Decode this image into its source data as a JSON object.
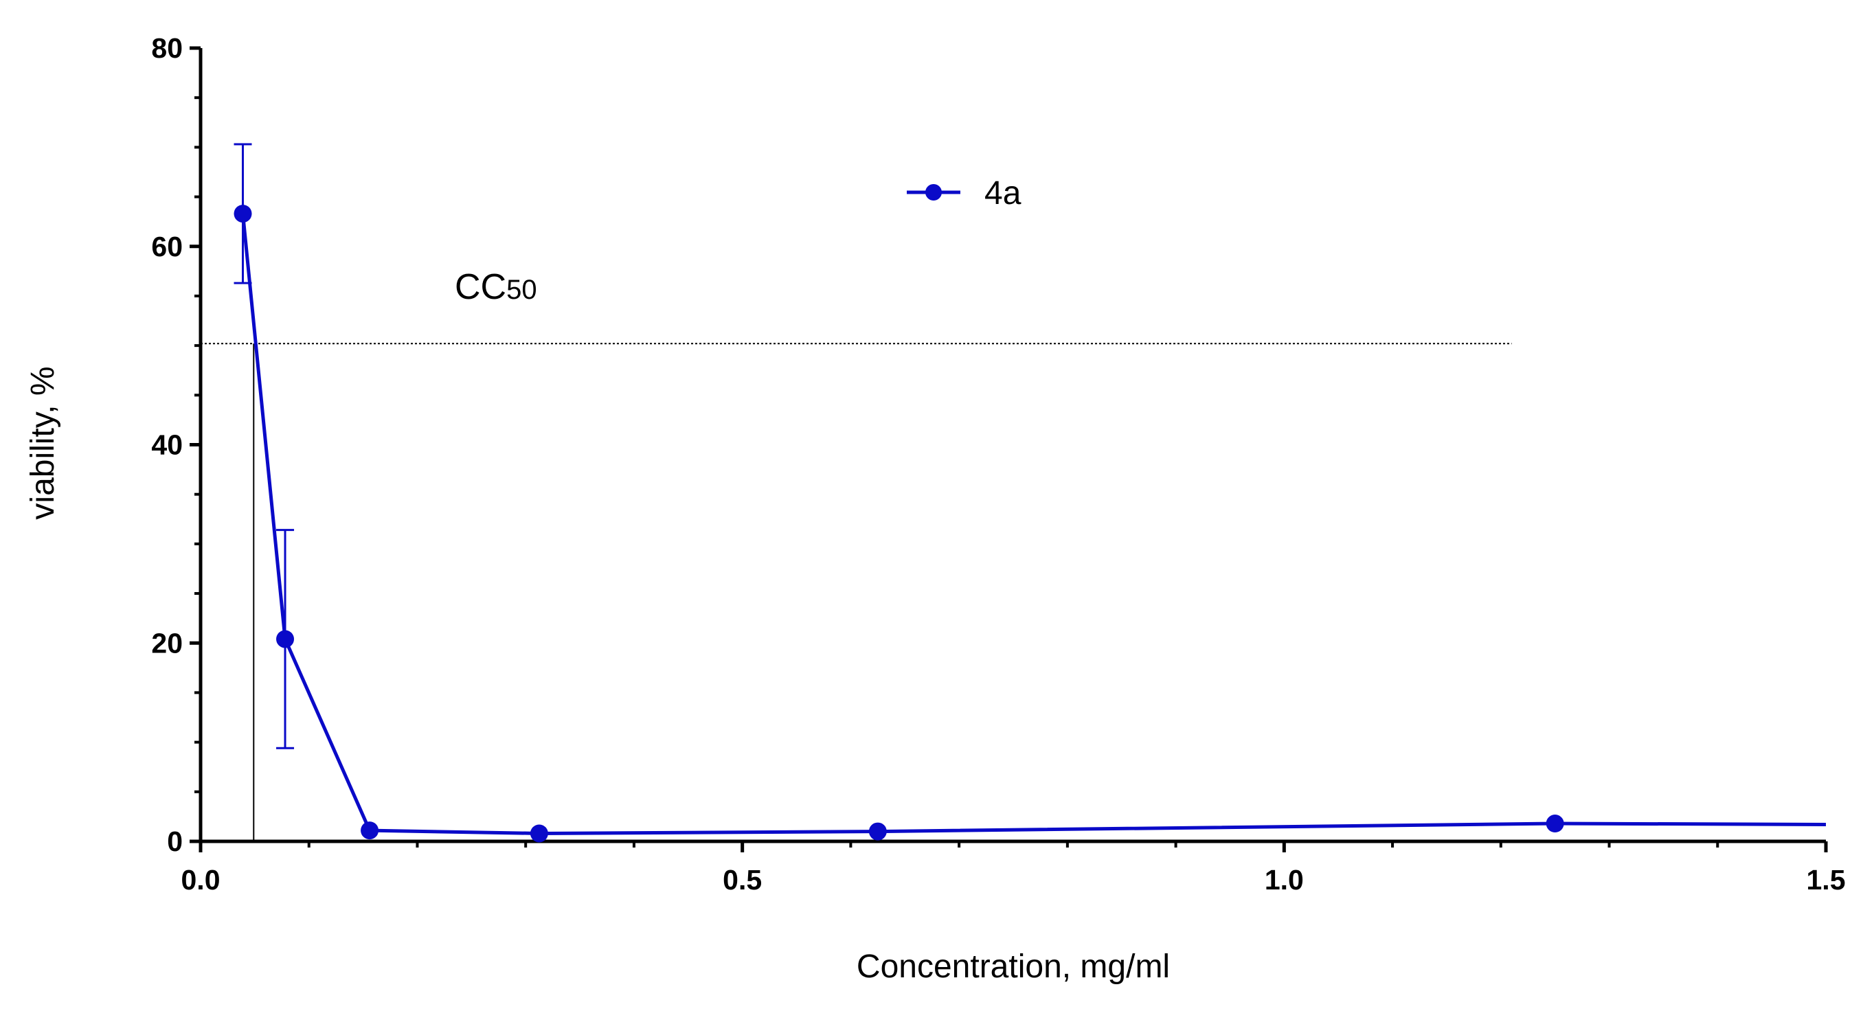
{
  "chart_data": {
    "type": "line",
    "title": "",
    "xlabel": "Concentration, mg/ml",
    "ylabel": "viability, %",
    "xlim": [
      0,
      1.5
    ],
    "ylim": [
      0,
      80
    ],
    "x_ticks": [
      "0.0",
      "0.5",
      "1.0",
      "1.5"
    ],
    "y_ticks": [
      "0",
      "20",
      "40",
      "60",
      "80"
    ],
    "grid": false,
    "legend_position": "top-center",
    "series": [
      {
        "name": "4a",
        "color": "#0a0ac8",
        "marker": "circle",
        "x": [
          0.039,
          0.078,
          0.156,
          0.3125,
          0.625,
          1.25,
          1.5
        ],
        "y": [
          63.3,
          20.4,
          1.1,
          0.8,
          1.0,
          1.8,
          1.7
        ],
        "error": [
          7.0,
          11.0,
          0,
          0,
          0,
          0,
          0
        ],
        "markers_shown": [
          true,
          true,
          true,
          true,
          true,
          true,
          false
        ]
      }
    ],
    "reference_lines": {
      "cc50_y": 50.2,
      "cc50_x": 0.049
    },
    "annotation": {
      "main": "CC",
      "sub": "50"
    }
  }
}
